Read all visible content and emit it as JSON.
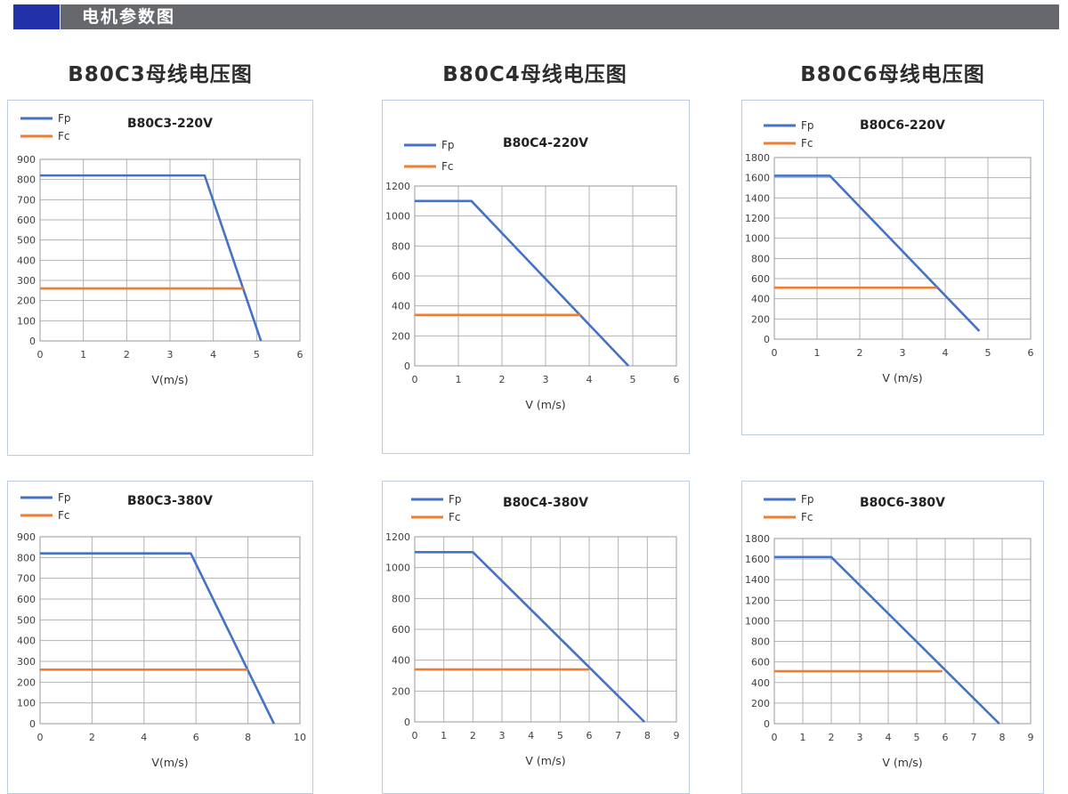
{
  "header": {
    "label": "电机参数图",
    "accent_color": "#2231a8",
    "bar_color": "#66686d"
  },
  "columns": [
    {
      "title": "B80C3母线电压图"
    },
    {
      "title": "B80C4母线电压图"
    },
    {
      "title": "B80C6母线电压图"
    }
  ],
  "colors": {
    "fp": "#4472C4",
    "fc": "#ED7D31",
    "grid": "#b3b3b3",
    "axis_text": "#404040",
    "panel_border": "#bccde2"
  },
  "chart_data": [
    {
      "type": "line",
      "title": "B80C3-220V",
      "xlabel": "V(m/s)",
      "legend": [
        "Fp",
        "Fc"
      ],
      "legend_position": "top-left",
      "grid": true,
      "xlim": [
        0,
        6
      ],
      "xticks": [
        0,
        1,
        2,
        3,
        4,
        5,
        6
      ],
      "ylim": [
        0,
        900
      ],
      "yticks": [
        0,
        100,
        200,
        300,
        400,
        500,
        600,
        700,
        800,
        900
      ],
      "series": [
        {
          "name": "Fp",
          "color": "#4472C4",
          "points": [
            [
              0,
              820
            ],
            [
              3.8,
              820
            ],
            [
              5.1,
              0
            ]
          ]
        },
        {
          "name": "Fc",
          "color": "#ED7D31",
          "points": [
            [
              0,
              260
            ],
            [
              4.7,
              260
            ]
          ]
        }
      ]
    },
    {
      "type": "line",
      "title": "B80C4-220V",
      "xlabel": "V (m/s)",
      "legend": [
        "Fp",
        "Fc"
      ],
      "legend_position": "top-left",
      "grid": true,
      "xlim": [
        0,
        6
      ],
      "xticks": [
        0,
        1,
        2,
        3,
        4,
        5,
        6
      ],
      "ylim": [
        0,
        1200
      ],
      "yticks": [
        0,
        200,
        400,
        600,
        800,
        1000,
        1200
      ],
      "series": [
        {
          "name": "Fp",
          "color": "#4472C4",
          "points": [
            [
              0,
              1100
            ],
            [
              1.3,
              1100
            ],
            [
              4.9,
              0
            ]
          ]
        },
        {
          "name": "Fc",
          "color": "#ED7D31",
          "points": [
            [
              0,
              340
            ],
            [
              3.8,
              340
            ]
          ]
        }
      ]
    },
    {
      "type": "line",
      "title": "B80C6-220V",
      "xlabel": "V (m/s)",
      "legend": [
        "Fp",
        "Fc"
      ],
      "legend_position": "top-left",
      "grid": true,
      "xlim": [
        0,
        6
      ],
      "xticks": [
        0,
        1,
        2,
        3,
        4,
        5,
        6
      ],
      "ylim": [
        0,
        1800
      ],
      "yticks": [
        0,
        200,
        400,
        600,
        800,
        1000,
        1200,
        1400,
        1600,
        1800
      ],
      "series": [
        {
          "name": "Fp",
          "color": "#4472C4",
          "points": [
            [
              0,
              1620
            ],
            [
              1.3,
              1620
            ],
            [
              4.8,
              80
            ]
          ]
        },
        {
          "name": "Fc",
          "color": "#ED7D31",
          "points": [
            [
              0,
              510
            ],
            [
              3.8,
              510
            ]
          ]
        }
      ]
    },
    {
      "type": "line",
      "title": "B80C3-380V",
      "xlabel": "V(m/s)",
      "legend": [
        "Fp",
        "Fc"
      ],
      "legend_position": "top-left",
      "grid": true,
      "xlim": [
        0,
        10
      ],
      "xticks": [
        0,
        2,
        4,
        6,
        8,
        10
      ],
      "ylim": [
        0,
        900
      ],
      "yticks": [
        0,
        100,
        200,
        300,
        400,
        500,
        600,
        700,
        800,
        900
      ],
      "series": [
        {
          "name": "Fp",
          "color": "#4472C4",
          "points": [
            [
              0,
              820
            ],
            [
              5.8,
              820
            ],
            [
              9,
              0
            ]
          ]
        },
        {
          "name": "Fc",
          "color": "#ED7D31",
          "points": [
            [
              0,
              260
            ],
            [
              8,
              260
            ]
          ]
        }
      ]
    },
    {
      "type": "line",
      "title": "B80C4-380V",
      "xlabel": "V (m/s)",
      "legend": [
        "Fp",
        "Fc"
      ],
      "legend_position": "top-left",
      "grid": true,
      "xlim": [
        0,
        9
      ],
      "xticks": [
        0,
        1,
        2,
        3,
        4,
        5,
        6,
        7,
        8,
        9
      ],
      "ylim": [
        0,
        1200
      ],
      "yticks": [
        0,
        200,
        400,
        600,
        800,
        1000,
        1200
      ],
      "series": [
        {
          "name": "Fp",
          "color": "#4472C4",
          "points": [
            [
              0,
              1100
            ],
            [
              2,
              1100
            ],
            [
              7.9,
              0
            ]
          ]
        },
        {
          "name": "Fc",
          "color": "#ED7D31",
          "points": [
            [
              0,
              340
            ],
            [
              6,
              340
            ]
          ]
        }
      ]
    },
    {
      "type": "line",
      "title": "B80C6-380V",
      "xlabel": "V (m/s)",
      "legend": [
        "Fp",
        "Fc"
      ],
      "legend_position": "top-left",
      "grid": true,
      "xlim": [
        0,
        9
      ],
      "xticks": [
        0,
        1,
        2,
        3,
        4,
        5,
        6,
        7,
        8,
        9
      ],
      "ylim": [
        0,
        1800
      ],
      "yticks": [
        0,
        200,
        400,
        600,
        800,
        1000,
        1200,
        1400,
        1600,
        1800
      ],
      "series": [
        {
          "name": "Fp",
          "color": "#4472C4",
          "points": [
            [
              0,
              1620
            ],
            [
              2,
              1620
            ],
            [
              7.9,
              0
            ]
          ]
        },
        {
          "name": "Fc",
          "color": "#ED7D31",
          "points": [
            [
              0,
              510
            ],
            [
              5.9,
              510
            ]
          ]
        }
      ]
    }
  ]
}
